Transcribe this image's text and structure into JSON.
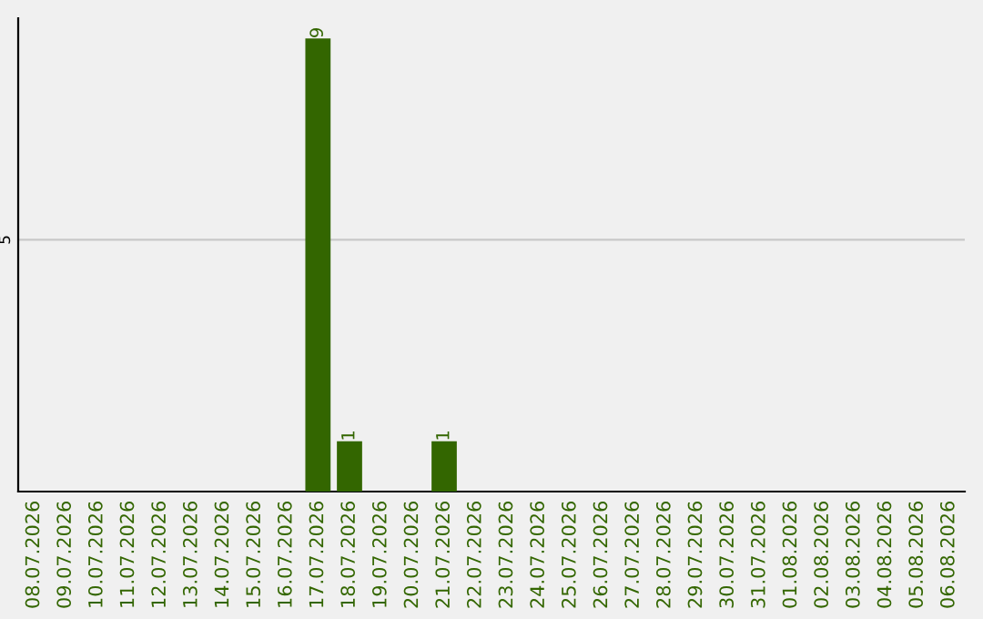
{
  "chart_data": {
    "type": "bar",
    "categories": [
      "08.07.2026",
      "09.07.2026",
      "10.07.2026",
      "11.07.2026",
      "12.07.2026",
      "13.07.2026",
      "14.07.2026",
      "15.07.2026",
      "16.07.2026",
      "17.07.2026",
      "18.07.2026",
      "19.07.2026",
      "20.07.2026",
      "21.07.2026",
      "22.07.2026",
      "23.07.2026",
      "24.07.2026",
      "25.07.2026",
      "26.07.2026",
      "27.07.2026",
      "28.07.2026",
      "29.07.2026",
      "30.07.2026",
      "31.07.2026",
      "01.08.2026",
      "02.08.2026",
      "03.08.2026",
      "04.08.2026",
      "05.08.2026",
      "06.08.2026"
    ],
    "values": [
      0,
      0,
      0,
      0,
      0,
      0,
      0,
      0,
      0,
      9,
      1,
      0,
      0,
      1,
      0,
      0,
      0,
      0,
      0,
      0,
      0,
      0,
      0,
      0,
      0,
      0,
      0,
      0,
      0,
      0
    ],
    "value_labels": [
      null,
      null,
      null,
      null,
      null,
      null,
      null,
      null,
      null,
      "9",
      "1",
      null,
      null,
      "1",
      null,
      null,
      null,
      null,
      null,
      null,
      null,
      null,
      null,
      null,
      null,
      null,
      null,
      null,
      null,
      null
    ],
    "color": "#336600",
    "ylim": [
      0,
      9.4
    ],
    "yticks": [
      5
    ],
    "grid": "y"
  }
}
